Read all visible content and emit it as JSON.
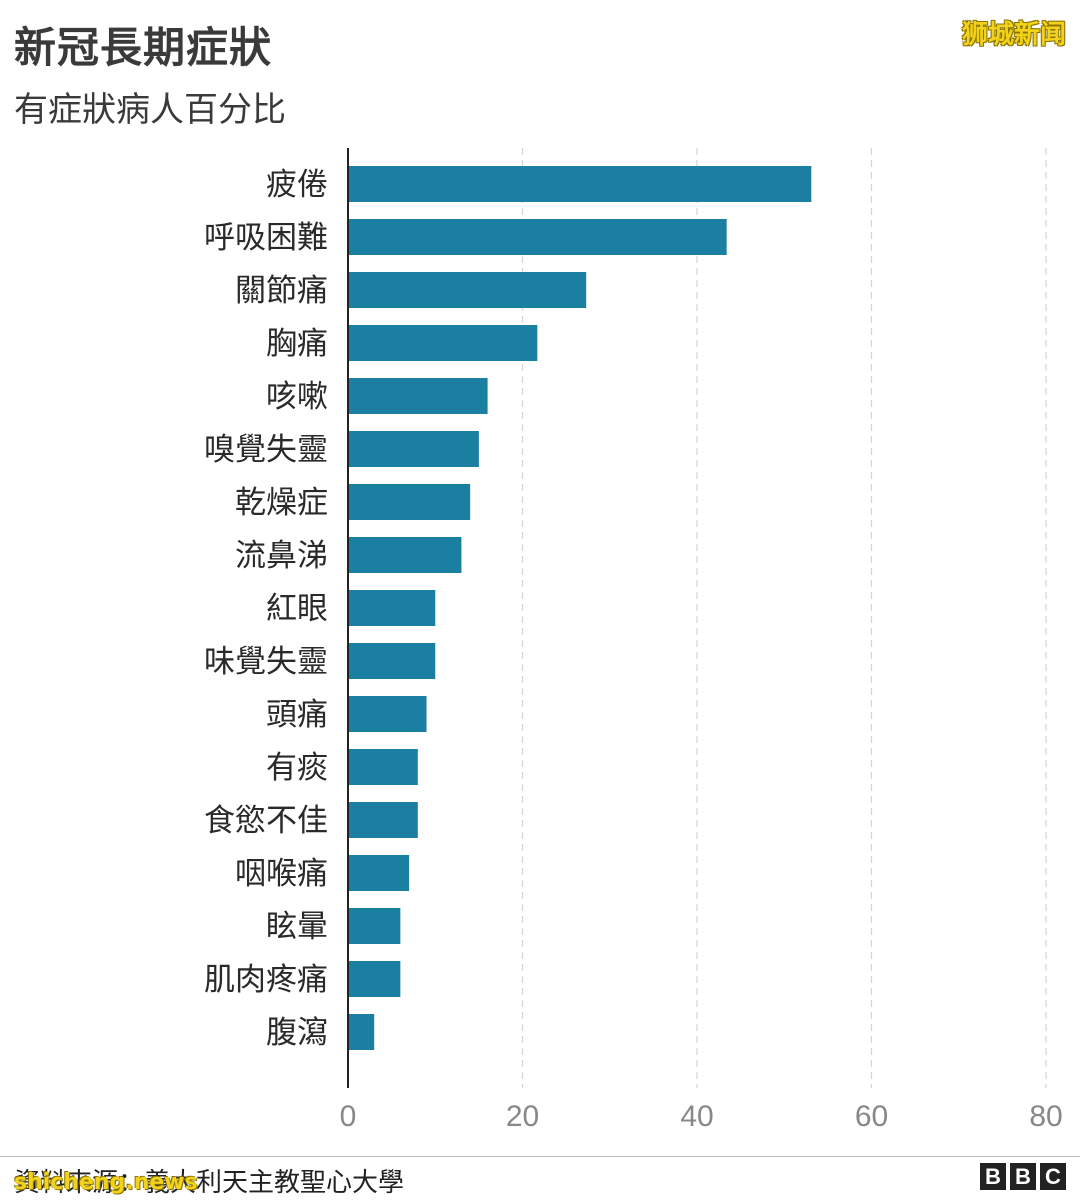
{
  "header": {
    "title": "新冠長期症狀",
    "subtitle": "有症狀病人百分比",
    "watermark": "狮城新闻"
  },
  "footer": {
    "source": "資料來源：義大利天主教聖心大學",
    "watermark": "shicheng.news",
    "logo_letters": [
      "B",
      "B",
      "C"
    ]
  },
  "colors": {
    "bar": "#1a7fa0",
    "grid": "#d4d4d4",
    "axis": "#222222",
    "tick_label": "#888888",
    "category_label": "#2a2a2a"
  },
  "chart_data": {
    "type": "bar",
    "orientation": "horizontal",
    "categories": [
      "疲倦",
      "呼吸困難",
      "關節痛",
      "胸痛",
      "咳嗽",
      "嗅覺失靈",
      "乾燥症",
      "流鼻涕",
      "紅眼",
      "味覺失靈",
      "頭痛",
      "有痰",
      "食慾不佳",
      "咽喉痛",
      "眩暈",
      "肌肉疼痛",
      "腹瀉"
    ],
    "values": [
      53.1,
      43.4,
      27.3,
      21.7,
      16,
      15,
      14,
      13,
      10,
      10,
      9,
      8,
      8,
      7,
      6,
      6,
      3
    ],
    "xlim": [
      0,
      80
    ],
    "xticks": [
      "0",
      "20",
      "40",
      "60",
      "80"
    ],
    "title": "新冠長期症狀",
    "subtitle": "有症狀病人百分比",
    "xlabel": "",
    "ylabel": "",
    "grid": "vertical dashed"
  }
}
